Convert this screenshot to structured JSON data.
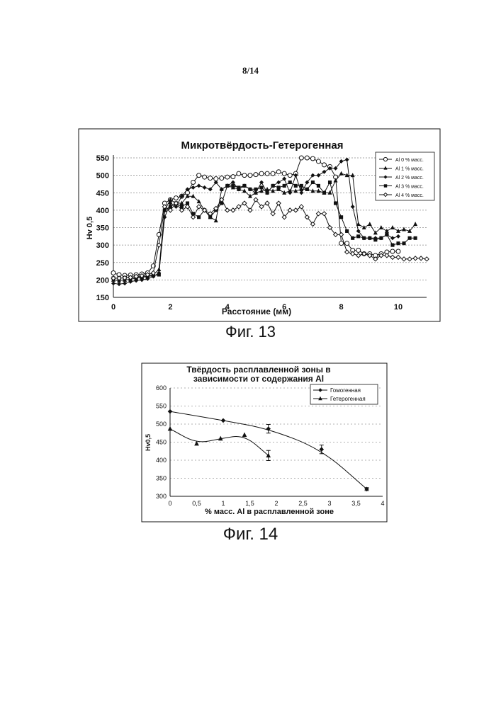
{
  "page": {
    "number": "8/14"
  },
  "figures": [
    {
      "caption": "Фиг. 13"
    },
    {
      "caption": "Фиг. 14"
    }
  ],
  "chart_data": [
    {
      "type": "line",
      "title": "Микротвёрдость-Гетерогенная",
      "xlabel": "Расстояние (мм)",
      "ylabel": "Hv 0,5",
      "xlim": [
        0,
        11
      ],
      "ylim": [
        150,
        550
      ],
      "x_ticks": [
        0,
        2,
        4,
        6,
        8,
        10
      ],
      "y_ticks": [
        150,
        200,
        250,
        300,
        350,
        400,
        450,
        500,
        550
      ],
      "grid": true,
      "legend_position": "top-right",
      "series": [
        {
          "name": "Al 0 % масс.",
          "marker": "open-circle",
          "x": [
            0,
            0.2,
            0.4,
            0.6,
            0.8,
            1.0,
            1.2,
            1.4,
            1.6,
            1.8,
            2.0,
            2.2,
            2.4,
            2.6,
            2.8,
            3.0,
            3.2,
            3.4,
            3.6,
            3.8,
            4.0,
            4.2,
            4.4,
            4.6,
            4.8,
            5.0,
            5.2,
            5.4,
            5.6,
            5.8,
            6.0,
            6.2,
            6.4,
            6.6,
            6.8,
            7.0,
            7.2,
            7.4,
            7.6,
            7.8,
            8.0,
            8.2,
            8.4,
            8.6,
            8.8,
            9.0,
            9.2,
            9.4,
            9.6,
            9.8,
            10.0
          ],
          "y": [
            220,
            215,
            213,
            214,
            215,
            217,
            220,
            240,
            330,
            420,
            430,
            435,
            440,
            450,
            480,
            500,
            495,
            492,
            490,
            492,
            495,
            496,
            505,
            500,
            500,
            502,
            505,
            505,
            505,
            510,
            505,
            500,
            505,
            550,
            550,
            548,
            540,
            530,
            525,
            495,
            305,
            305,
            285,
            285,
            275,
            275,
            270,
            275,
            280,
            282,
            282
          ]
        },
        {
          "name": "Al 1 % масс.",
          "marker": "filled-triangle",
          "x": [
            0,
            0.2,
            0.4,
            0.6,
            0.8,
            1.0,
            1.2,
            1.4,
            1.6,
            1.8,
            2.0,
            2.2,
            2.4,
            2.6,
            2.8,
            3.0,
            3.2,
            3.4,
            3.6,
            3.8,
            4.0,
            4.2,
            4.4,
            4.6,
            4.8,
            5.0,
            5.2,
            5.4,
            5.6,
            5.8,
            6.0,
            6.2,
            6.4,
            6.6,
            6.8,
            7.0,
            7.2,
            7.4,
            7.6,
            7.8,
            8.0,
            8.2,
            8.4,
            8.6,
            8.8,
            9.0,
            9.2,
            9.4,
            9.6,
            9.8,
            10.0,
            10.2,
            10.4,
            10.6
          ],
          "y": [
            200,
            198,
            200,
            202,
            205,
            207,
            210,
            215,
            230,
            400,
            430,
            420,
            420,
            440,
            440,
            425,
            400,
            380,
            370,
            460,
            470,
            465,
            460,
            455,
            440,
            450,
            455,
            460,
            455,
            460,
            450,
            455,
            455,
            460,
            460,
            455,
            455,
            450,
            450,
            485,
            505,
            500,
            500,
            360,
            350,
            360,
            335,
            350,
            340,
            350,
            340,
            345,
            340,
            360
          ]
        },
        {
          "name": "Al 2 % масс.",
          "marker": "filled-diamond",
          "x": [
            0,
            0.2,
            0.4,
            0.6,
            0.8,
            1.0,
            1.2,
            1.4,
            1.6,
            1.8,
            2.0,
            2.2,
            2.4,
            2.6,
            2.8,
            3.0,
            3.2,
            3.4,
            3.6,
            3.8,
            4.0,
            4.2,
            4.4,
            4.6,
            4.8,
            5.0,
            5.2,
            5.4,
            5.6,
            5.8,
            6.0,
            6.2,
            6.4,
            6.6,
            6.8,
            7.0,
            7.2,
            7.4,
            7.6,
            7.8,
            8.0,
            8.2,
            8.4,
            8.6,
            8.8,
            9.0,
            9.2,
            9.4,
            9.6,
            9.8,
            10.0
          ],
          "y": [
            190,
            188,
            190,
            195,
            198,
            200,
            203,
            210,
            220,
            380,
            420,
            410,
            440,
            460,
            465,
            470,
            465,
            460,
            480,
            460,
            470,
            480,
            460,
            470,
            460,
            450,
            480,
            450,
            470,
            480,
            490,
            450,
            500,
            450,
            480,
            500,
            500,
            510,
            520,
            520,
            540,
            545,
            410,
            340,
            320,
            320,
            320,
            320,
            330,
            320,
            325
          ]
        },
        {
          "name": "Al 3 % масс.",
          "marker": "filled-square",
          "x": [
            0,
            0.2,
            0.4,
            0.6,
            0.8,
            1.0,
            1.2,
            1.4,
            1.6,
            1.8,
            2.0,
            2.2,
            2.4,
            2.6,
            2.8,
            3.0,
            3.2,
            3.4,
            3.6,
            3.8,
            4.0,
            4.2,
            4.4,
            4.6,
            4.8,
            5.0,
            5.2,
            5.4,
            5.6,
            5.8,
            6.0,
            6.2,
            6.4,
            6.6,
            6.8,
            7.0,
            7.2,
            7.4,
            7.6,
            7.8,
            8.0,
            8.2,
            8.4,
            8.6,
            8.8,
            9.0,
            9.2,
            9.4,
            9.6,
            9.8,
            10.0,
            10.2,
            10.4,
            10.6
          ],
          "y": [
            205,
            205,
            206,
            207,
            208,
            209,
            210,
            212,
            215,
            400,
            410,
            420,
            410,
            420,
            390,
            380,
            400,
            380,
            400,
            420,
            470,
            470,
            465,
            470,
            460,
            460,
            465,
            450,
            470,
            465,
            470,
            480,
            470,
            470,
            460,
            480,
            470,
            450,
            480,
            420,
            380,
            340,
            320,
            325,
            320,
            320,
            315,
            320,
            330,
            300,
            305,
            305,
            320,
            320
          ]
        },
        {
          "name": "Al 4 % масс.",
          "marker": "open-diamond",
          "x": [
            0,
            0.2,
            0.4,
            0.6,
            0.8,
            1.0,
            1.2,
            1.4,
            1.6,
            1.8,
            2.0,
            2.2,
            2.4,
            2.6,
            2.8,
            3.0,
            3.2,
            3.4,
            3.6,
            3.8,
            4.0,
            4.2,
            4.4,
            4.6,
            4.8,
            5.0,
            5.2,
            5.4,
            5.6,
            5.8,
            6.0,
            6.2,
            6.4,
            6.6,
            6.8,
            7.0,
            7.2,
            7.4,
            7.6,
            7.8,
            8.0,
            8.2,
            8.4,
            8.6,
            8.8,
            9.0,
            9.2,
            9.4,
            9.6,
            9.8,
            10.0,
            10.2,
            10.4,
            10.6,
            10.8,
            11.0
          ],
          "y": [
            205,
            205,
            206,
            207,
            210,
            212,
            215,
            220,
            300,
            410,
            400,
            420,
            400,
            410,
            380,
            410,
            400,
            390,
            405,
            430,
            400,
            400,
            410,
            420,
            400,
            430,
            410,
            420,
            390,
            420,
            380,
            400,
            400,
            410,
            380,
            360,
            390,
            390,
            350,
            330,
            330,
            280,
            275,
            270,
            275,
            270,
            260,
            270,
            270,
            265,
            265,
            260,
            260,
            262,
            262,
            260
          ]
        }
      ]
    },
    {
      "type": "line",
      "title": "Твёрдость расплавленной зоны в зависимости от содержания Al",
      "title_lines": [
        "Твёрдость расплавленной зоны в",
        "зависимости от содержания Al"
      ],
      "xlabel": "% масс. Al в расплавленной зоне",
      "ylabel": "Hv0,5",
      "xlim": [
        0,
        4
      ],
      "ylim": [
        300,
        600
      ],
      "x_ticks": [
        0,
        0.5,
        1,
        1.5,
        2,
        2.5,
        3,
        3.5,
        4
      ],
      "x_tick_labels": [
        "0",
        "0,5",
        "1",
        "1,5",
        "2",
        "2,5",
        "3",
        "3,5",
        "4"
      ],
      "y_ticks": [
        300,
        350,
        400,
        450,
        500,
        550,
        600
      ],
      "grid": true,
      "legend_position": "top-right",
      "series": [
        {
          "name": "Гомогенная",
          "marker": "filled-diamond",
          "x": [
            0,
            1.0,
            1.85,
            2.85,
            3.7
          ],
          "y": [
            535,
            510,
            487,
            430,
            320
          ],
          "error": [
            0,
            0,
            12,
            12,
            4
          ]
        },
        {
          "name": "Гетерогенная",
          "marker": "filled-triangle",
          "x": [
            0,
            0.5,
            0.95,
            1.4,
            1.85
          ],
          "y": [
            487,
            446,
            460,
            470,
            413
          ],
          "error": [
            0,
            0,
            0,
            0,
            14
          ]
        }
      ]
    }
  ]
}
